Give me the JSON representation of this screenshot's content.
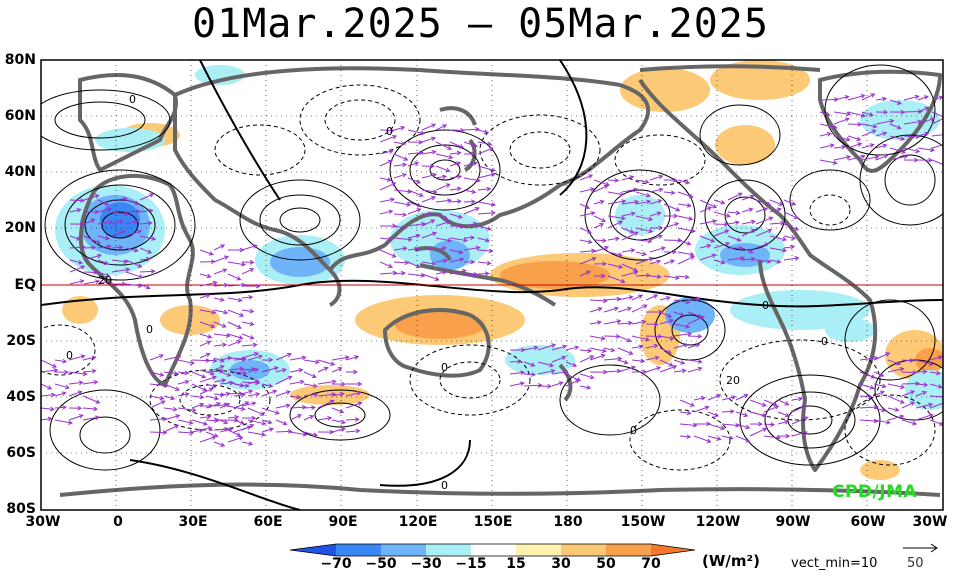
{
  "title": "01Mar.2025 – 05Mar.2025",
  "credit": "CPD/JMA",
  "lat_labels": [
    "80N",
    "60N",
    "40N",
    "20N",
    "EQ",
    "20S",
    "40S",
    "60S",
    "80S"
  ],
  "lon_labels": [
    "30W",
    "0",
    "30E",
    "60E",
    "90E",
    "120E",
    "150E",
    "180",
    "150W",
    "120W",
    "90W",
    "60W",
    "30W"
  ],
  "colorbar": {
    "units": "(W/m²)",
    "vect_min_label": "vect_min=10",
    "ref_vector_label": "50",
    "labels": [
      "−70",
      "−50",
      "−30",
      "−15",
      "15",
      "30",
      "50",
      "70"
    ],
    "colors": [
      "#1f53e6",
      "#3a86f2",
      "#6fb3f8",
      "#aaeef6",
      "#ffffff",
      "#fff2b0",
      "#fcc977",
      "#f9a04a",
      "#f5772a"
    ]
  },
  "contour_labels": [
    "0",
    "20",
    "0",
    "0",
    "0",
    "0",
    "0",
    "0",
    "20",
    "0",
    "0"
  ],
  "colors": {
    "positive_shading": "#f9a04a",
    "negative_shading": "#3a86f2",
    "vectors": "#9933cc",
    "land": "#666666",
    "contours": "#000000",
    "equator": "#cc0000",
    "credit": "#22dd22"
  }
}
